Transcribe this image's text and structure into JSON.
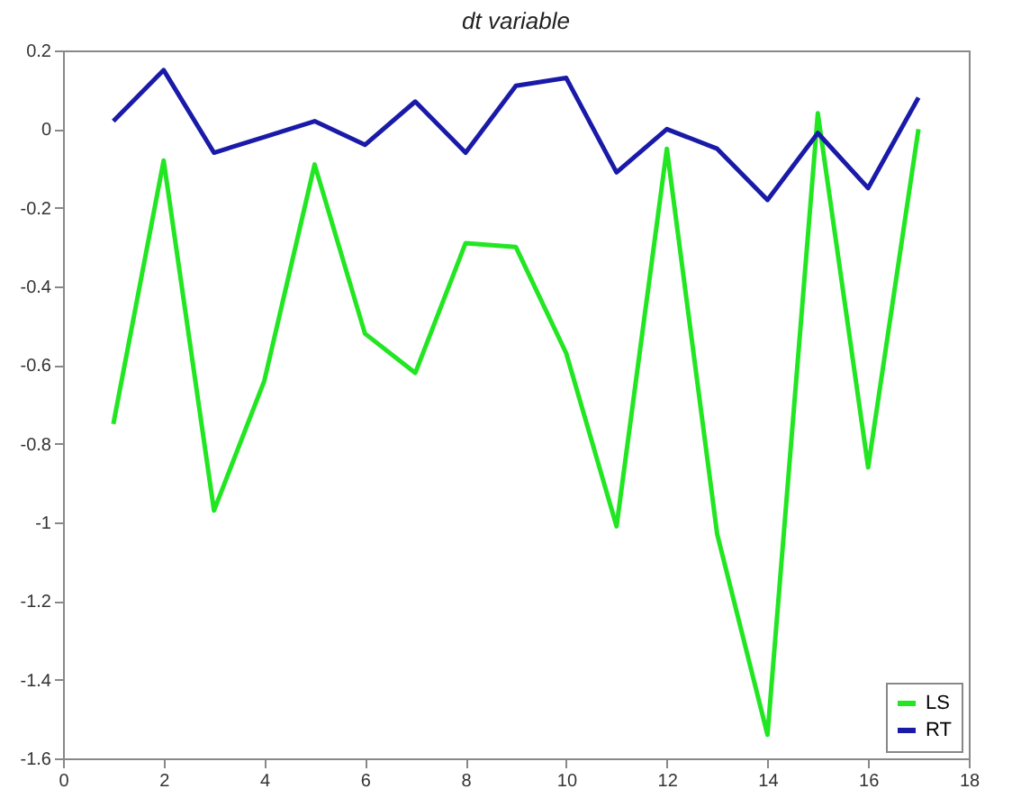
{
  "chart_data": {
    "type": "line",
    "title": "dt variable",
    "x": [
      1,
      2,
      3,
      4,
      5,
      6,
      7,
      8,
      9,
      10,
      11,
      12,
      13,
      14,
      15,
      16,
      17
    ],
    "series": [
      {
        "name": "LS",
        "color": "#22e622",
        "values": [
          -0.75,
          -0.08,
          -0.97,
          -0.64,
          -0.09,
          -0.52,
          -0.62,
          -0.29,
          -0.3,
          -0.57,
          -1.01,
          -0.05,
          -1.03,
          -1.54,
          0.04,
          -0.86,
          0.0
        ]
      },
      {
        "name": "RT",
        "color": "#1a1aa8",
        "values": [
          0.02,
          0.15,
          -0.06,
          -0.02,
          0.02,
          -0.04,
          0.07,
          -0.06,
          0.11,
          0.13,
          -0.11,
          0.0,
          -0.05,
          -0.18,
          -0.01,
          -0.15,
          0.08
        ]
      }
    ],
    "xlim": [
      0,
      18
    ],
    "xticks": [
      0,
      2,
      4,
      6,
      8,
      10,
      12,
      14,
      16,
      18
    ],
    "ylim": [
      -1.6,
      0.2
    ],
    "yticks": [
      {
        "value": -1.6,
        "label": "-1.6"
      },
      {
        "value": -1.4,
        "label": "-1.4"
      },
      {
        "value": -1.2,
        "label": "-1.2"
      },
      {
        "value": -1,
        "label": "-1"
      },
      {
        "value": -0.8,
        "label": "-0.8"
      },
      {
        "value": -0.6,
        "label": "-0.6"
      },
      {
        "value": -0.4,
        "label": "-0.4"
      },
      {
        "value": -0.2,
        "label": "-0.2"
      },
      {
        "value": 0,
        "label": "0"
      },
      {
        "value": 0.2,
        "label": "0.2"
      }
    ],
    "grid": false,
    "legend": "bottom right",
    "marker": "none",
    "line_style": "solid"
  }
}
